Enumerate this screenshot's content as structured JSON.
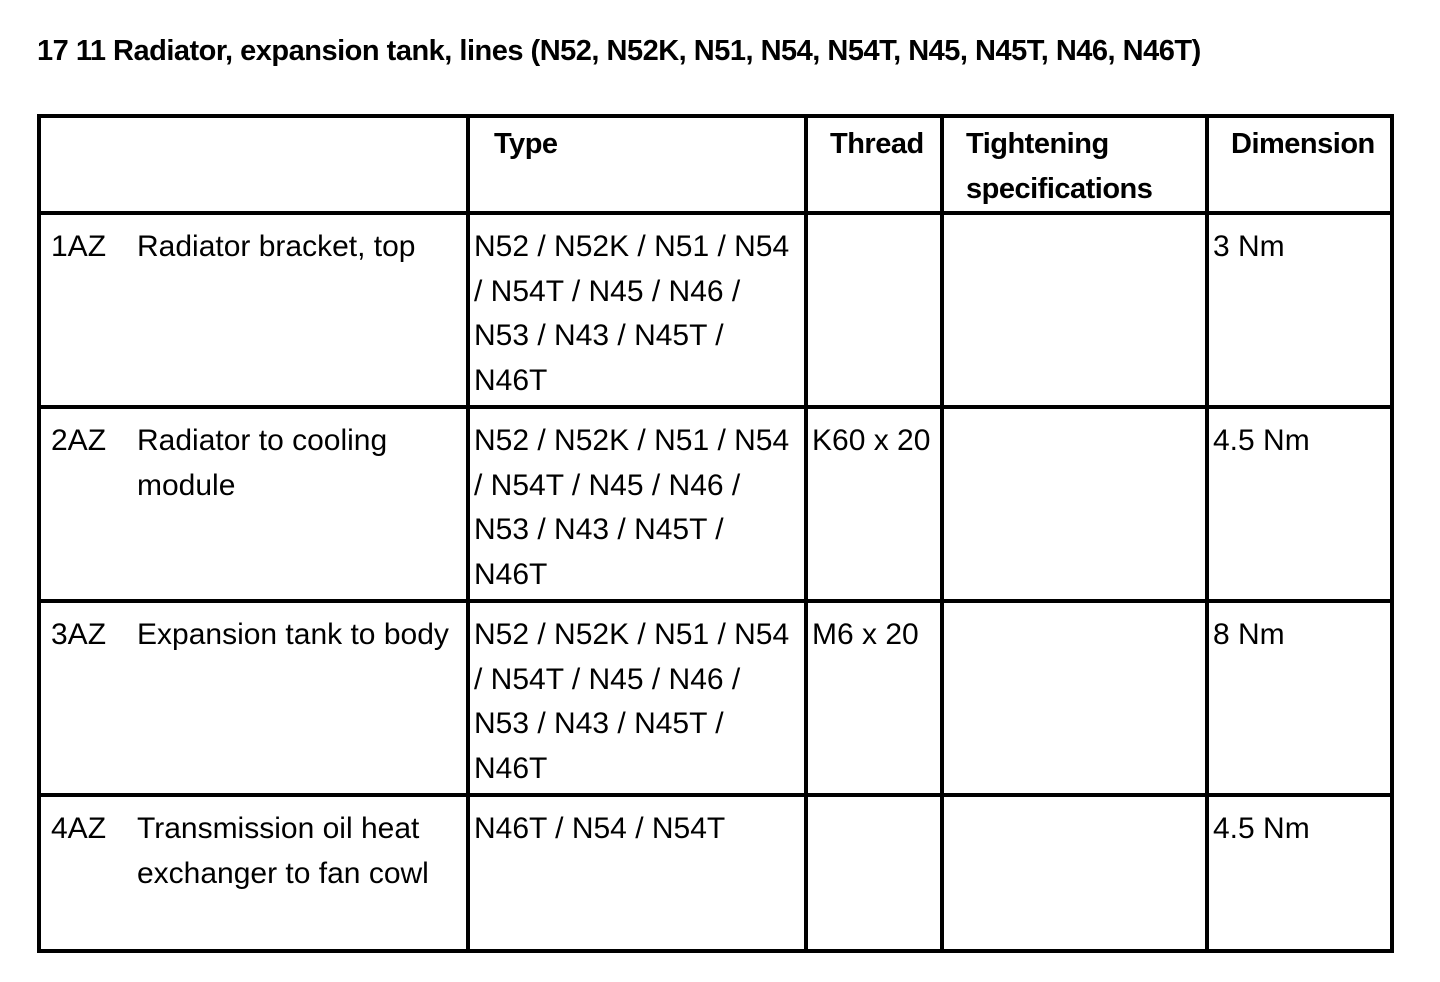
{
  "title": "17 11 Radiator, expansion tank, lines (N52, N52K, N51, N54, N54T, N45, N45T, N46, N46T)",
  "table": {
    "headers": [
      "",
      "Type",
      "Thread",
      "Tightening specifications",
      "Dimension"
    ],
    "rows": [
      {
        "id": "1AZ",
        "description": "Radiator bracket, top",
        "type": "N52 / N52K / N51 / N54 / N54T / N45 / N46 / N53 / N43 / N45T / N46T",
        "thread": "",
        "tightening": "",
        "dimension": "3 Nm"
      },
      {
        "id": "2AZ",
        "description": "Radiator to cooling module",
        "type": "N52 / N52K / N51 / N54 / N54T / N45 / N46 / N53 / N43 / N45T / N46T",
        "thread": "K60 x 20",
        "tightening": "",
        "dimension": "4.5 Nm"
      },
      {
        "id": "3AZ",
        "description": "Expansion tank to body",
        "type": "N52 / N52K / N51 / N54 / N54T / N45 / N46 / N53 / N43 / N45T / N46T",
        "thread": "M6 x 20",
        "tightening": "",
        "dimension": "8 Nm"
      },
      {
        "id": "4AZ",
        "description": "Transmission oil heat exchanger to fan cowl",
        "type": "N46T / N54 / N54T",
        "thread": "",
        "tightening": "",
        "dimension": "4.5 Nm"
      }
    ]
  }
}
